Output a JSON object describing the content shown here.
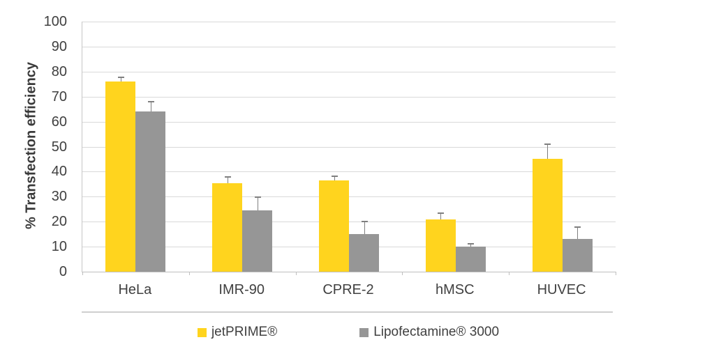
{
  "chart_data": {
    "type": "bar",
    "title": "",
    "xlabel": "",
    "ylabel": "% Transfection efficiency",
    "ylim": [
      0,
      100
    ],
    "ytick_step": 10,
    "grid": true,
    "legend_position": "bottom",
    "categories": [
      "HeLa",
      "IMR-90",
      "CPRE-2",
      "hMSC",
      "HUVEC"
    ],
    "series": [
      {
        "name": "jetPRIME®",
        "color": "#FFD41E",
        "values": [
          76,
          35.5,
          36.5,
          21,
          45
        ],
        "errors_up": [
          1.8,
          2.5,
          1.8,
          2.5,
          6
        ]
      },
      {
        "name": "Lipofectamine® 3000",
        "color": "#969696",
        "values": [
          64,
          24.5,
          15,
          10,
          13
        ],
        "errors_up": [
          4,
          5.4,
          5,
          1.2,
          4.8
        ]
      }
    ],
    "error_bar_color": "#7f7f7f",
    "gridline_color": "#d9d9d9",
    "axis_line_color": "#bfbfbf",
    "text_color": "#404040"
  }
}
